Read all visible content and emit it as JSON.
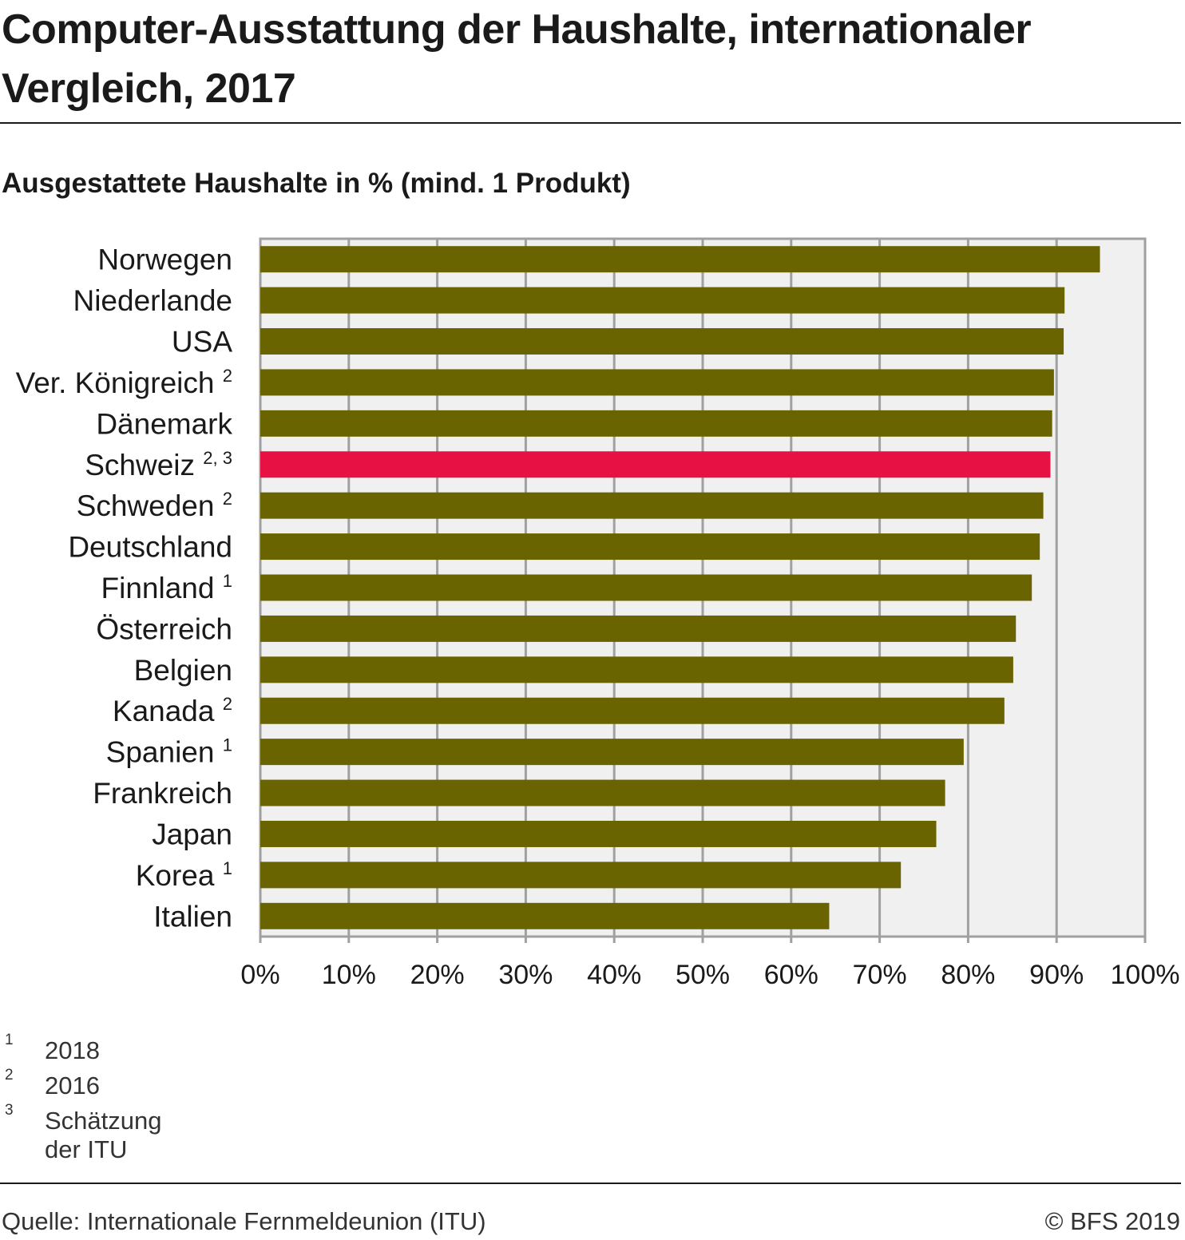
{
  "header": {
    "title": "Computer-Ausstattung der Haushalte, internationaler Vergleich, 2017",
    "subtitle": "Ausgestattete Haushalte in % (mind. 1 Produkt)"
  },
  "chart_data": {
    "type": "bar",
    "orientation": "horizontal",
    "title": "Computer-Ausstattung der Haushalte, internationaler Vergleich, 2017",
    "subtitle": "Ausgestattete Haushalte in % (mind. 1 Produkt)",
    "xlabel": "",
    "ylabel": "",
    "xlim": [
      0,
      100
    ],
    "x_ticks": [
      0,
      10,
      20,
      30,
      40,
      50,
      60,
      70,
      80,
      90,
      100
    ],
    "x_tick_labels": [
      "0%",
      "10%",
      "20%",
      "30%",
      "40%",
      "50%",
      "60%",
      "70%",
      "80%",
      "90%",
      "100%"
    ],
    "grid": true,
    "categories": [
      "Norwegen",
      "Niederlande",
      "USA",
      "Ver. Königreich",
      "Dänemark",
      "Schweiz",
      "Schweden",
      "Deutschland",
      "Finnland",
      "Österreich",
      "Belgien",
      "Kanada",
      "Spanien",
      "Frankreich",
      "Japan",
      "Korea",
      "Italien"
    ],
    "footnote_marks": [
      "",
      "",
      "",
      "2",
      "",
      "2, 3",
      "2",
      "",
      "1",
      "",
      "",
      "2",
      "1",
      "",
      "",
      "1",
      ""
    ],
    "values": [
      94.9,
      90.9,
      90.8,
      89.7,
      89.5,
      89.3,
      88.5,
      88.1,
      87.2,
      85.4,
      85.1,
      84.1,
      79.5,
      77.4,
      76.4,
      72.4,
      64.3
    ],
    "highlight": "Schweiz",
    "colors": {
      "default": "#6a6400",
      "highlight": "#e81144",
      "plot_background": "#f0f0f0",
      "grid": "#a0a0a0"
    }
  },
  "footnotes": [
    {
      "mark": "1",
      "text": "2018"
    },
    {
      "mark": "2",
      "text": "2016"
    },
    {
      "mark": "3",
      "text": "Schätzung der ITU"
    }
  ],
  "footer": {
    "source": "Quelle: Internationale Fernmeldeunion (ITU)",
    "copyright": "© BFS 2019"
  }
}
